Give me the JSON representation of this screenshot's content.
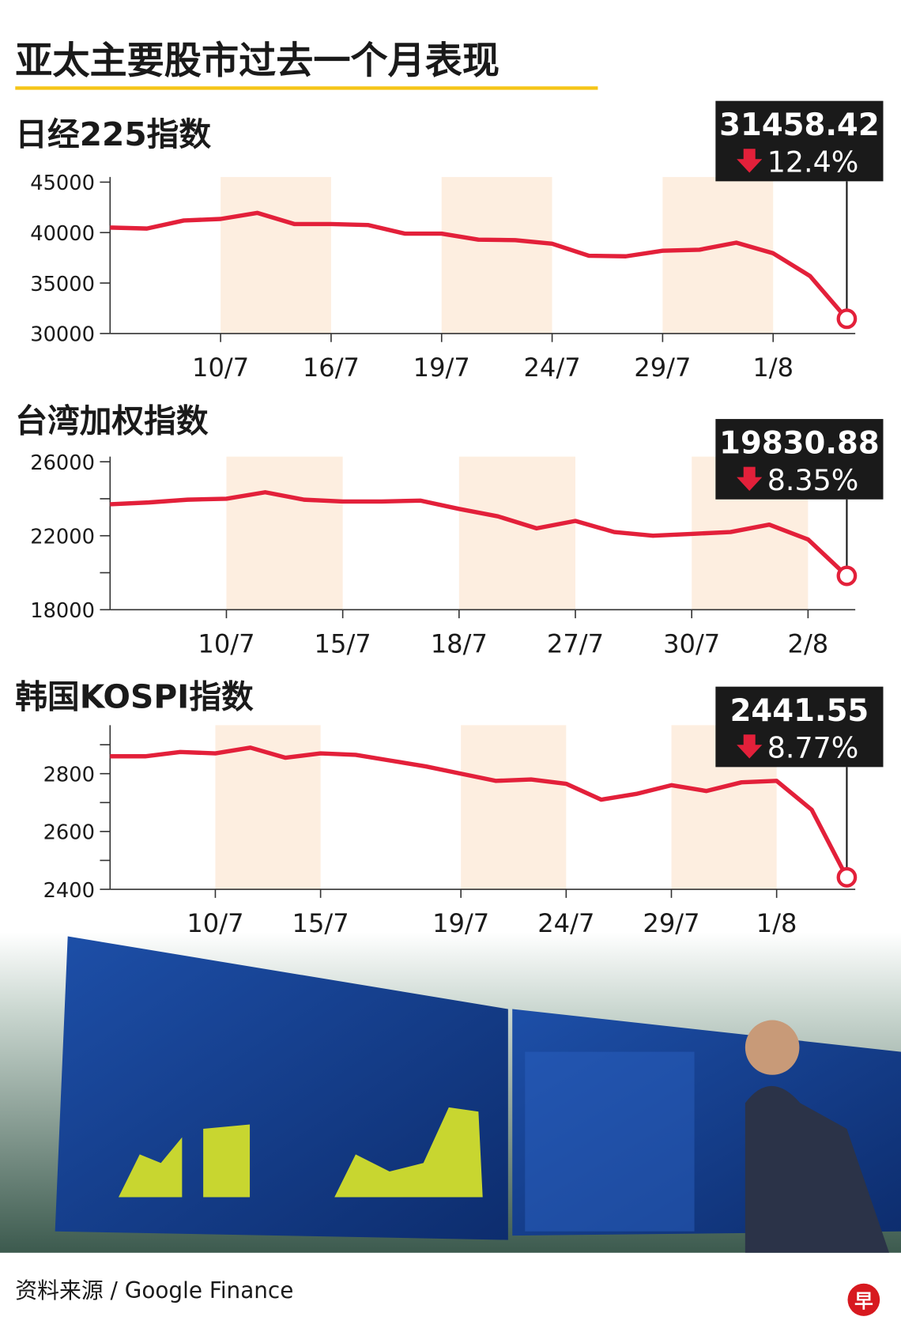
{
  "title": "亚太主要股市过去一个月表现",
  "chart_data": [
    {
      "type": "line",
      "title": "日经225指数",
      "color": "#e3203a",
      "categories": [
        null,
        null,
        null,
        "10/7",
        null,
        null,
        "16/7",
        null,
        null,
        "19/7",
        null,
        null,
        "24/7",
        null,
        null,
        "29/7",
        null,
        null,
        "1/8",
        null,
        null
      ],
      "values": [
        40500,
        40400,
        41200,
        41350,
        41950,
        40850,
        40850,
        40750,
        39900,
        39900,
        39300,
        39250,
        38900,
        37700,
        37650,
        38200,
        38300,
        39000,
        37950,
        35700,
        31458.42
      ],
      "ylim": [
        30000,
        45000
      ],
      "yticks": [
        30000,
        35000,
        40000,
        45000
      ],
      "change": "12.4%"
    },
    {
      "type": "line",
      "title": "台湾加权指数",
      "color": "#e3203a",
      "categories": [
        null,
        null,
        null,
        "10/7",
        null,
        null,
        "15/7",
        null,
        null,
        "18/7",
        null,
        null,
        "27/7",
        null,
        null,
        "30/7",
        null,
        null,
        "2/8",
        null
      ],
      "values": [
        23700,
        23800,
        23950,
        24000,
        24350,
        23950,
        23850,
        23850,
        23900,
        23450,
        23050,
        22400,
        22800,
        22200,
        22000,
        22100,
        22200,
        22600,
        21800,
        19830.88
      ],
      "ylim": [
        18000,
        26000
      ],
      "yticks": [
        18000,
        22000,
        26000
      ],
      "yminorticks": [
        20000,
        24000
      ],
      "change": "8.35%"
    },
    {
      "type": "line",
      "title": "韩国KOSPI指数",
      "color": "#e3203a",
      "categories": [
        null,
        null,
        null,
        "10/7",
        null,
        null,
        "15/7",
        null,
        null,
        null,
        "19/7",
        null,
        null,
        "24/7",
        null,
        null,
        "29/7",
        null,
        null,
        "1/8",
        null,
        null
      ],
      "values": [
        2860,
        2860,
        2875,
        2870,
        2890,
        2855,
        2870,
        2865,
        2845,
        2825,
        2800,
        2775,
        2780,
        2765,
        2710,
        2730,
        2760,
        2740,
        2770,
        2775,
        2675,
        2441.55
      ],
      "ylim": [
        2400,
        2950
      ],
      "yticks": [
        2400,
        2600,
        2800
      ],
      "yminorticks": [
        2500,
        2700,
        2900
      ],
      "change": "8.77%"
    }
  ],
  "source": "资料来源 / Google Finance",
  "logo": "早"
}
